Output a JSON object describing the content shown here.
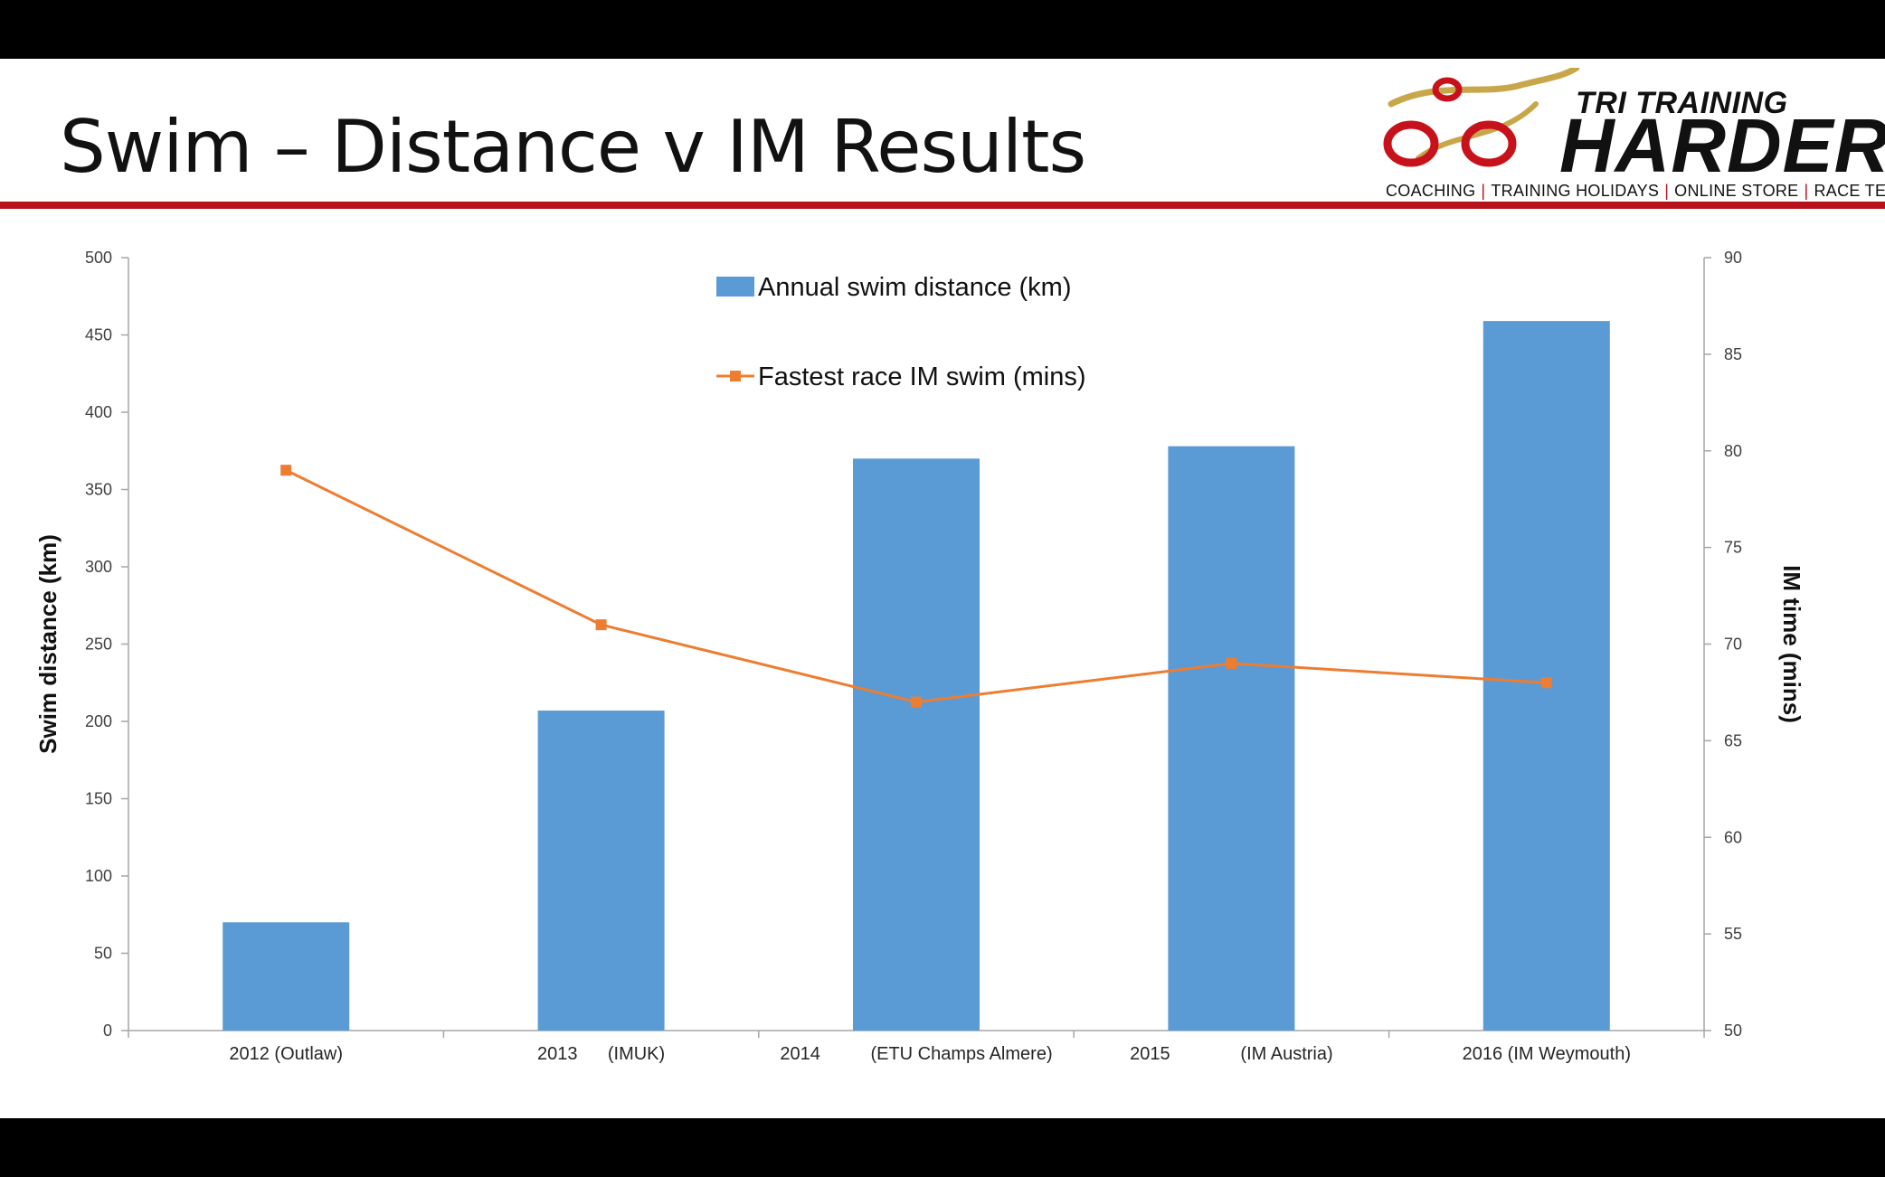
{
  "slide": {
    "title": "Swim – Distance v IM Results"
  },
  "logo": {
    "line1": "TRI TRAINING",
    "line2": "HARDER",
    "tagline": [
      "COACHING",
      "TRAINING HOLIDAYS",
      "ONLINE STORE",
      "RACE TEAM"
    ],
    "separator": "|"
  },
  "colors": {
    "bar": "#5b9bd5",
    "line": "#ed7d31",
    "accent_red": "#b5121b",
    "gold": "#c8a64a"
  },
  "chart_data": {
    "type": "bar",
    "categories": [
      "2012 (Outlaw)",
      "2013      (IMUK)",
      "2014          (ETU Champs Almere)",
      "2015              (IM Austria)",
      "2016 (IM Weymouth)"
    ],
    "series": [
      {
        "name": "Annual swim distance (km)",
        "type": "bar",
        "axis": "left",
        "values": [
          70,
          207,
          370,
          378,
          459
        ]
      },
      {
        "name": "Fastest race IM swim (mins)",
        "type": "line",
        "axis": "right",
        "values": [
          79,
          71,
          67,
          69,
          68
        ]
      }
    ],
    "ylabel": "Swim distance (km)",
    "y2label": "IM time (mins)",
    "ylim": [
      0,
      500
    ],
    "y2lim": [
      50,
      90
    ],
    "yticks": [
      0,
      50,
      100,
      150,
      200,
      250,
      300,
      350,
      400,
      450,
      500
    ],
    "y2ticks": [
      50,
      55,
      60,
      65,
      70,
      75,
      80,
      85,
      90
    ],
    "legend_position": "top-center",
    "grid": false
  }
}
